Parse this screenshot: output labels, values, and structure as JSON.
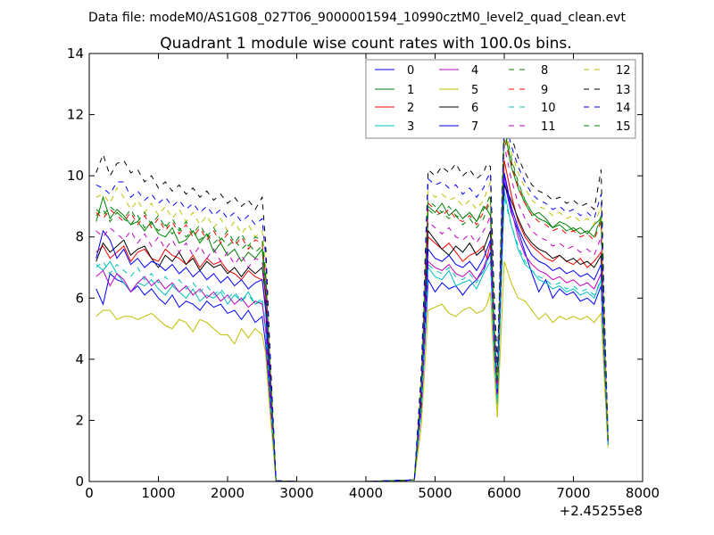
{
  "chart_data": {
    "type": "line",
    "suptitle": "Data file: modeM0/AS1G08_027T06_9000001594_10990cztM0_level2_quad_clean.evt",
    "title": "Quadrant 1 module wise count rates with 100.0s bins.",
    "xlabel": "",
    "ylabel": "",
    "x_offset_label": "+2.45255e8",
    "xlim": [
      0,
      8000
    ],
    "ylim": [
      0,
      14
    ],
    "x_ticks": [
      0,
      1000,
      2000,
      3000,
      4000,
      5000,
      6000,
      7000,
      8000
    ],
    "y_ticks": [
      0,
      2,
      4,
      6,
      8,
      10,
      12,
      14
    ],
    "grid": false,
    "legend_position": "top-right",
    "x": [
      100,
      200,
      300,
      400,
      500,
      600,
      700,
      800,
      900,
      1000,
      1100,
      1200,
      1300,
      1400,
      1500,
      1600,
      1700,
      1800,
      1900,
      2000,
      2100,
      2200,
      2300,
      2400,
      2500,
      2550,
      2600,
      2700,
      3000,
      4000,
      4700,
      4800,
      4900,
      5000,
      5100,
      5200,
      5300,
      5400,
      5500,
      5600,
      5700,
      5750,
      5800,
      5850,
      5900,
      6000,
      6100,
      6200,
      6300,
      6400,
      6500,
      6600,
      6700,
      6800,
      6900,
      7000,
      7100,
      7200,
      7300,
      7400,
      7450,
      7500
    ],
    "series": [
      {
        "name": "0",
        "color": "#0000ff",
        "dash": "solid",
        "values": [
          6.3,
          5.8,
          6.8,
          6.6,
          6.5,
          6.2,
          6.4,
          6.1,
          6.3,
          6.0,
          5.8,
          6.1,
          5.7,
          5.9,
          5.8,
          5.6,
          5.9,
          5.7,
          5.8,
          5.5,
          5.6,
          5.3,
          5.6,
          5.2,
          5.4,
          4.5,
          3.0,
          0.02,
          0.0,
          0.0,
          0.05,
          2.3,
          6.6,
          6.2,
          6.5,
          6.3,
          6.4,
          6.1,
          6.4,
          6.6,
          6.9,
          7.2,
          7.5,
          4.5,
          2.6,
          9.8,
          8.8,
          8.2,
          7.5,
          6.8,
          6.2,
          6.6,
          6.0,
          6.3,
          6.1,
          6.2,
          5.9,
          6.0,
          5.8,
          6.4,
          3.5,
          1.2
        ]
      },
      {
        "name": "1",
        "color": "#008000",
        "dash": "solid",
        "values": [
          8.5,
          9.3,
          8.6,
          8.9,
          8.7,
          8.4,
          8.5,
          8.2,
          8.5,
          8.1,
          8.0,
          8.3,
          7.8,
          7.9,
          8.2,
          7.8,
          8.1,
          7.5,
          7.8,
          7.4,
          7.6,
          7.2,
          7.5,
          7.3,
          7.6,
          6.2,
          4.0,
          0.02,
          0.0,
          0.0,
          0.05,
          2.9,
          9.0,
          8.8,
          9.1,
          8.7,
          8.9,
          8.6,
          8.8,
          8.5,
          9.0,
          8.9,
          8.7,
          5.0,
          3.0,
          11.6,
          10.3,
          9.6,
          9.1,
          8.7,
          8.8,
          8.6,
          8.3,
          8.5,
          8.4,
          8.2,
          8.3,
          8.1,
          8.4,
          8.6,
          4.5,
          1.4
        ]
      },
      {
        "name": "2",
        "color": "#ff0000",
        "dash": "solid",
        "values": [
          7.5,
          7.7,
          7.3,
          7.5,
          7.7,
          7.2,
          7.5,
          7.6,
          7.3,
          7.2,
          7.6,
          7.4,
          7.3,
          7.1,
          7.4,
          7.0,
          7.3,
          7.1,
          7.2,
          6.9,
          6.8,
          6.6,
          6.9,
          6.7,
          6.6,
          5.8,
          3.6,
          0.02,
          0.0,
          0.0,
          0.05,
          2.7,
          8.0,
          7.8,
          7.6,
          7.8,
          7.5,
          7.2,
          7.4,
          7.5,
          7.7,
          7.3,
          7.8,
          5.0,
          3.2,
          10.5,
          9.4,
          8.5,
          8.0,
          7.7,
          7.5,
          7.3,
          7.2,
          7.4,
          7.2,
          7.1,
          7.3,
          7.0,
          7.2,
          7.5,
          4.0,
          1.3
        ]
      },
      {
        "name": "3",
        "color": "#00bfbf",
        "dash": "solid",
        "values": [
          7.1,
          6.9,
          7.2,
          6.8,
          6.5,
          6.2,
          6.5,
          6.4,
          6.6,
          6.3,
          6.1,
          6.4,
          6.2,
          6.0,
          6.3,
          5.9,
          6.1,
          6.0,
          6.2,
          5.8,
          6.1,
          5.9,
          6.2,
          5.8,
          5.9,
          5.0,
          3.2,
          0.02,
          0.0,
          0.0,
          0.05,
          2.4,
          7.0,
          6.7,
          6.6,
          6.9,
          6.4,
          6.5,
          6.6,
          6.3,
          6.8,
          7.0,
          7.2,
          4.4,
          2.5,
          9.5,
          8.4,
          7.6,
          7.1,
          6.9,
          6.6,
          6.5,
          6.3,
          6.4,
          6.2,
          6.3,
          6.1,
          6.2,
          6.0,
          6.6,
          3.6,
          1.2
        ]
      },
      {
        "name": "4",
        "color": "#bf00bf",
        "dash": "solid",
        "values": [
          6.7,
          6.9,
          6.4,
          6.8,
          6.6,
          6.2,
          6.5,
          6.7,
          6.4,
          6.6,
          6.3,
          6.5,
          6.2,
          6.4,
          6.1,
          6.3,
          6.0,
          6.2,
          5.9,
          6.1,
          5.8,
          6.0,
          5.7,
          5.9,
          5.8,
          5.0,
          3.2,
          0.02,
          0.0,
          0.0,
          0.05,
          2.4,
          7.2,
          7.0,
          6.9,
          7.1,
          6.8,
          6.7,
          6.9,
          6.6,
          7.0,
          7.3,
          7.4,
          4.6,
          2.7,
          10.0,
          8.9,
          8.0,
          7.4,
          7.1,
          6.9,
          6.8,
          6.6,
          6.7,
          6.5,
          6.6,
          6.4,
          6.5,
          6.3,
          6.8,
          3.8,
          1.2
        ]
      },
      {
        "name": "5",
        "color": "#bfbf00",
        "dash": "solid",
        "values": [
          5.4,
          5.6,
          5.6,
          5.3,
          5.4,
          5.4,
          5.3,
          5.4,
          5.5,
          5.3,
          5.1,
          5.0,
          5.3,
          5.2,
          4.9,
          5.3,
          5.2,
          5.0,
          4.8,
          4.8,
          4.5,
          5.0,
          4.7,
          5.0,
          4.8,
          4.2,
          2.6,
          0.02,
          0.0,
          0.0,
          0.05,
          1.8,
          5.6,
          5.7,
          5.8,
          5.5,
          5.4,
          5.6,
          5.7,
          5.5,
          5.6,
          5.8,
          6.2,
          3.8,
          2.1,
          7.2,
          6.5,
          6.0,
          5.9,
          5.6,
          5.3,
          5.5,
          5.2,
          5.4,
          5.3,
          5.4,
          5.3,
          5.4,
          5.2,
          5.5,
          3.2,
          1.1
        ]
      },
      {
        "name": "6",
        "color": "#000000",
        "dash": "solid",
        "values": [
          7.2,
          7.8,
          7.5,
          7.7,
          7.9,
          7.4,
          7.6,
          7.7,
          7.3,
          7.0,
          7.4,
          7.2,
          7.5,
          7.1,
          7.3,
          6.9,
          7.2,
          7.0,
          7.1,
          6.8,
          7.0,
          6.7,
          7.0,
          6.8,
          7.0,
          6.1,
          3.9,
          0.02,
          0.0,
          0.0,
          0.05,
          2.8,
          8.2,
          7.9,
          7.6,
          7.4,
          7.7,
          7.5,
          7.8,
          7.4,
          7.6,
          7.9,
          8.2,
          5.0,
          3.0,
          9.7,
          9.2,
          8.6,
          8.1,
          7.8,
          7.6,
          7.5,
          7.3,
          7.4,
          7.2,
          7.3,
          7.1,
          7.2,
          7.0,
          7.4,
          4.0,
          1.3
        ]
      },
      {
        "name": "7",
        "color": "#0000ff",
        "dash": "solid",
        "values": [
          7.3,
          8.2,
          7.9,
          7.3,
          7.6,
          7.1,
          7.3,
          7.0,
          7.2,
          7.1,
          6.9,
          7.1,
          6.8,
          7.0,
          6.7,
          6.9,
          6.6,
          6.8,
          6.5,
          6.7,
          6.4,
          6.6,
          6.3,
          6.5,
          6.6,
          5.6,
          3.5,
          0.02,
          0.0,
          0.0,
          0.05,
          2.6,
          7.6,
          7.3,
          7.2,
          7.4,
          7.1,
          7.0,
          7.2,
          6.9,
          7.3,
          7.6,
          7.9,
          4.9,
          2.9,
          10.1,
          9.0,
          8.3,
          7.8,
          7.4,
          7.2,
          7.1,
          6.9,
          7.0,
          6.8,
          6.9,
          6.7,
          6.8,
          6.6,
          7.1,
          3.9,
          1.3
        ]
      },
      {
        "name": "8",
        "color": "#008000",
        "dash": "dashed",
        "values": [
          8.7,
          8.9,
          8.5,
          8.8,
          8.6,
          8.4,
          8.7,
          8.3,
          8.5,
          8.2,
          8.4,
          8.1,
          8.3,
          8.0,
          8.2,
          7.9,
          8.1,
          7.8,
          8.0,
          7.7,
          7.9,
          7.6,
          7.8,
          7.5,
          7.7,
          6.6,
          4.2,
          0.02,
          0.0,
          0.0,
          0.05,
          3.0,
          8.9,
          8.7,
          8.8,
          8.6,
          8.7,
          8.4,
          8.6,
          8.3,
          8.6,
          8.9,
          9.2,
          5.4,
          3.2,
          11.8,
          10.6,
          9.8,
          9.2,
          8.8,
          8.6,
          8.5,
          8.3,
          8.4,
          8.2,
          8.3,
          8.1,
          8.2,
          8.0,
          8.6,
          4.7,
          1.4
        ]
      },
      {
        "name": "9",
        "color": "#ff0000",
        "dash": "dashed",
        "values": [
          8.8,
          8.6,
          8.9,
          8.7,
          8.5,
          8.8,
          8.4,
          8.7,
          8.3,
          8.6,
          8.2,
          8.5,
          8.1,
          8.4,
          8.0,
          8.3,
          7.9,
          8.2,
          7.8,
          8.1,
          7.7,
          8.0,
          7.6,
          7.9,
          7.8,
          6.7,
          4.3,
          0.02,
          0.0,
          0.0,
          0.05,
          3.1,
          9.1,
          8.9,
          8.7,
          8.9,
          8.6,
          8.5,
          8.7,
          8.4,
          8.8,
          9.0,
          9.3,
          5.5,
          3.3,
          11.2,
          10.4,
          9.6,
          9.1,
          8.7,
          8.5,
          8.4,
          8.2,
          8.3,
          8.1,
          8.2,
          8.0,
          8.1,
          7.9,
          8.5,
          4.6,
          1.4
        ]
      },
      {
        "name": "10",
        "color": "#00bfbf",
        "dash": "dashed",
        "values": [
          7.0,
          7.2,
          6.8,
          7.1,
          6.9,
          6.7,
          7.0,
          6.6,
          6.8,
          6.5,
          6.7,
          6.4,
          6.6,
          6.3,
          6.5,
          6.2,
          6.4,
          6.1,
          6.3,
          6.0,
          6.2,
          5.9,
          6.1,
          5.8,
          6.0,
          5.1,
          3.3,
          0.02,
          0.0,
          0.0,
          0.05,
          2.4,
          7.1,
          6.9,
          6.8,
          7.0,
          6.7,
          6.6,
          6.8,
          6.5,
          6.9,
          7.2,
          7.4,
          4.5,
          2.6,
          9.3,
          8.4,
          7.7,
          7.2,
          6.9,
          6.7,
          6.6,
          6.4,
          6.5,
          6.3,
          6.4,
          6.2,
          6.3,
          6.1,
          6.6,
          3.7,
          1.2
        ]
      },
      {
        "name": "11",
        "color": "#bf00bf",
        "dash": "dashed",
        "values": [
          8.2,
          8.0,
          8.3,
          8.1,
          7.9,
          8.2,
          7.8,
          8.1,
          7.7,
          8.0,
          7.6,
          7.9,
          7.5,
          7.8,
          7.4,
          7.7,
          7.3,
          7.6,
          7.2,
          7.5,
          7.1,
          7.4,
          7.0,
          7.3,
          7.2,
          6.2,
          4.0,
          0.02,
          0.0,
          0.0,
          0.05,
          2.9,
          8.5,
          8.3,
          8.1,
          8.3,
          8.0,
          7.9,
          8.1,
          7.8,
          8.2,
          8.4,
          8.7,
          5.2,
          3.1,
          11.0,
          9.9,
          9.1,
          8.6,
          8.2,
          8.0,
          7.9,
          7.7,
          7.8,
          7.6,
          7.7,
          7.5,
          7.6,
          7.4,
          8.0,
          4.4,
          1.3
        ]
      },
      {
        "name": "12",
        "color": "#bfbf00",
        "dash": "dashed",
        "values": [
          9.3,
          9.4,
          9.1,
          9.6,
          9.3,
          8.9,
          9.2,
          8.8,
          9.1,
          8.7,
          9.0,
          8.6,
          8.9,
          8.5,
          8.8,
          8.4,
          8.7,
          8.3,
          8.6,
          8.2,
          8.5,
          8.1,
          8.4,
          8.0,
          8.2,
          7.0,
          4.5,
          0.02,
          0.0,
          0.0,
          0.05,
          3.3,
          9.5,
          9.3,
          9.4,
          9.2,
          9.3,
          9.0,
          9.2,
          8.9,
          9.2,
          9.5,
          9.8,
          5.8,
          3.4,
          11.5,
          10.8,
          10.1,
          9.6,
          9.2,
          9.0,
          8.9,
          8.7,
          8.8,
          8.6,
          8.7,
          8.5,
          8.6,
          8.4,
          9.0,
          4.9,
          1.5
        ]
      },
      {
        "name": "13",
        "color": "#000000",
        "dash": "dashed",
        "values": [
          10.1,
          10.7,
          10.0,
          10.4,
          10.5,
          10.1,
          10.2,
          9.8,
          10.0,
          9.6,
          9.8,
          9.5,
          9.7,
          9.4,
          9.6,
          9.3,
          9.5,
          9.2,
          9.4,
          9.1,
          9.3,
          9.0,
          9.2,
          8.9,
          9.3,
          7.8,
          5.0,
          0.02,
          0.0,
          0.0,
          0.05,
          3.6,
          10.2,
          10.0,
          10.3,
          10.1,
          10.4,
          10.0,
          10.2,
          9.9,
          10.1,
          10.4,
          10.3,
          6.4,
          3.8,
          12.0,
          11.3,
          10.6,
          10.1,
          9.7,
          9.5,
          9.4,
          9.2,
          9.3,
          9.1,
          9.2,
          9.0,
          9.1,
          8.9,
          10.2,
          5.3,
          1.6
        ]
      },
      {
        "name": "14",
        "color": "#0000ff",
        "dash": "dashed",
        "values": [
          9.7,
          9.6,
          9.4,
          9.8,
          9.8,
          9.3,
          9.5,
          9.2,
          9.4,
          9.1,
          9.3,
          9.0,
          9.2,
          8.9,
          9.1,
          8.8,
          9.0,
          8.7,
          8.9,
          8.6,
          8.8,
          8.5,
          8.7,
          8.4,
          8.6,
          7.4,
          4.7,
          0.02,
          0.0,
          0.0,
          0.05,
          3.4,
          9.9,
          9.7,
          9.8,
          9.6,
          9.7,
          9.4,
          9.6,
          9.3,
          9.6,
          9.9,
          10.1,
          6.1,
          3.6,
          11.9,
          11.0,
          10.3,
          9.8,
          9.4,
          9.2,
          9.1,
          8.9,
          9.0,
          8.8,
          8.9,
          8.7,
          8.8,
          8.6,
          9.4,
          5.1,
          1.5
        ]
      },
      {
        "name": "15",
        "color": "#008000",
        "dash": "dashed",
        "values": [
          8.9,
          8.7,
          9.0,
          8.8,
          8.6,
          8.9,
          8.5,
          8.8,
          8.4,
          8.7,
          8.3,
          8.6,
          8.2,
          8.5,
          8.1,
          8.4,
          8.0,
          8.3,
          7.9,
          8.2,
          7.8,
          8.1,
          7.7,
          8.0,
          7.9,
          6.8,
          4.4,
          0.02,
          0.0,
          0.0,
          0.05,
          3.1,
          9.2,
          9.0,
          8.8,
          9.0,
          8.7,
          8.6,
          8.8,
          8.5,
          8.9,
          9.1,
          9.4,
          5.6,
          3.3,
          11.4,
          10.5,
          9.7,
          9.2,
          8.8,
          8.6,
          8.5,
          8.3,
          8.4,
          8.2,
          8.3,
          8.1,
          8.2,
          8.0,
          8.7,
          4.7,
          1.4
        ]
      }
    ]
  }
}
